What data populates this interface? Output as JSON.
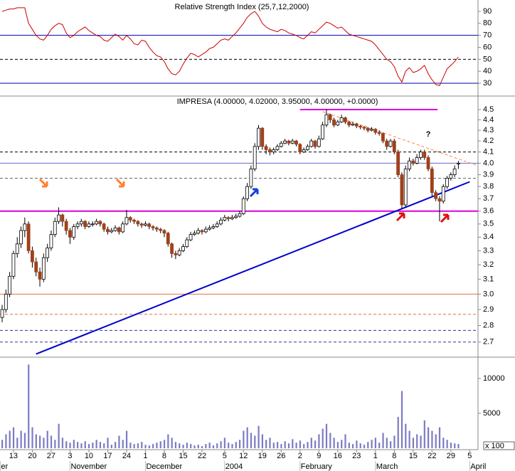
{
  "chart_data": [
    {
      "type": "line",
      "title": "Relative Strength Index (25,7,12,2000)",
      "color": "#cc0000",
      "xlim": [
        -0.57,
        126.2
      ],
      "ylim": [
        22.3,
        98.3
      ],
      "yticks": [
        30,
        40,
        50,
        60,
        70,
        80,
        90
      ],
      "reference_lines": [
        {
          "value": 70,
          "color": "#0000aa",
          "dashed": false
        },
        {
          "value": 50,
          "color": "#000000",
          "dashed": true
        },
        {
          "value": 30,
          "color": "#0000aa",
          "dashed": false
        }
      ],
      "values": [
        90,
        91,
        92,
        92,
        93,
        93,
        93,
        80,
        75,
        70,
        67,
        66,
        70,
        75,
        78,
        80,
        79,
        72,
        68,
        70,
        73,
        75,
        77,
        74,
        72,
        70,
        69,
        66,
        65,
        68,
        71,
        69,
        66,
        70,
        67,
        63,
        62,
        66,
        65,
        60,
        56,
        53,
        52,
        48,
        42,
        38,
        37,
        40,
        46,
        51,
        55,
        54,
        52,
        54,
        56,
        59,
        60,
        63,
        66,
        67,
        66,
        69,
        72,
        76,
        80,
        85,
        88,
        90,
        86,
        80,
        77,
        75,
        74,
        73,
        75,
        74,
        72,
        71,
        70,
        68,
        67,
        70,
        73,
        72,
        75,
        78,
        81,
        80,
        78,
        76,
        77,
        74,
        71,
        70,
        69,
        68,
        67,
        66,
        65,
        62,
        58,
        54,
        50,
        48,
        44,
        36,
        31,
        40,
        43,
        39,
        40,
        42,
        45,
        38,
        33,
        29,
        28,
        35,
        42,
        45,
        48,
        52
      ]
    },
    {
      "type": "candlestick",
      "title": "IMPRESA (4.00000, 4.02000, 3.95000, 4.00000, +0.0000)",
      "up_color": "#ffffff",
      "down_color": "#a0401a",
      "log_scale": true,
      "xlim": [
        -0.57,
        126.2
      ],
      "ylim": [
        2.62,
        4.6
      ],
      "yticks": [
        {
          "value": 4.5,
          "label": "4.5"
        },
        {
          "value": 4.4,
          "label": "4.4"
        },
        {
          "value": 4.3,
          "label": "4.3"
        },
        {
          "value": 4.2,
          "label": "4.2"
        },
        {
          "value": 4.1,
          "label": "4.1"
        },
        {
          "value": 4,
          "label": "4.0"
        },
        {
          "value": 3.9,
          "label": "3.9"
        },
        {
          "value": 3.8,
          "label": "3.8"
        },
        {
          "value": 3.7,
          "label": "3.7"
        },
        {
          "value": 3.6,
          "label": "3.6"
        },
        {
          "value": 3.5,
          "label": "3.5"
        },
        {
          "value": 3.4,
          "label": "3.4"
        },
        {
          "value": 3.3,
          "label": "3.3"
        },
        {
          "value": 3.2,
          "label": "3.2"
        },
        {
          "value": 3.1,
          "label": "3.1"
        },
        {
          "value": 3,
          "label": "3.0"
        },
        {
          "value": 2.9,
          "label": "2.9"
        },
        {
          "value": 2.8,
          "label": "2.8"
        },
        {
          "value": 2.7,
          "label": "2.7"
        }
      ],
      "reference_lines": [
        {
          "value": 4.1,
          "color": "#000000",
          "dashed": true
        },
        {
          "value": 4.0,
          "color": "#6666cc",
          "dashed": false
        },
        {
          "value": 3.87,
          "color": "#666666",
          "dashed": true
        },
        {
          "value": 3.6,
          "color": "#dd00dd",
          "dashed": false,
          "width": 2
        },
        {
          "value": 3.0,
          "color": "#e07040",
          "dashed": false
        },
        {
          "value": 2.87,
          "color": "#e07040",
          "dashed": true
        },
        {
          "value": 2.77,
          "color": "#333399",
          "dashed": true
        },
        {
          "value": 2.7,
          "color": "#333399",
          "dashed": true
        }
      ],
      "segments": [
        {
          "x": [
            79,
            115.5
          ],
          "y": [
            4.5,
            4.5
          ],
          "color": "#dd00dd",
          "dashed": false
        },
        {
          "x": [
            9,
            124
          ],
          "y": [
            2.63,
            3.84
          ],
          "color": "#0000cc",
          "dashed": false
        },
        {
          "x": [
            85,
            126
          ],
          "y": [
            4.48,
            3.98
          ],
          "color": "#ff8040",
          "dashed": true
        }
      ],
      "annotations": [
        {
          "text": "?",
          "x": 113,
          "y": 4.26,
          "color": "#ff8040"
        }
      ],
      "candles": [
        [
          2.85,
          2.93,
          2.82,
          2.9
        ],
        [
          2.9,
          3.03,
          2.88,
          3.0
        ],
        [
          3.0,
          3.15,
          2.98,
          3.12
        ],
        [
          3.12,
          3.3,
          3.1,
          3.28
        ],
        [
          3.28,
          3.4,
          3.25,
          3.35
        ],
        [
          3.35,
          3.48,
          3.32,
          3.45
        ],
        [
          3.45,
          3.55,
          3.4,
          3.5
        ],
        [
          3.5,
          3.52,
          3.28,
          3.3
        ],
        [
          3.3,
          3.33,
          3.18,
          3.22
        ],
        [
          3.22,
          3.25,
          3.12,
          3.15
        ],
        [
          3.15,
          3.18,
          3.05,
          3.1
        ],
        [
          3.1,
          3.28,
          3.08,
          3.25
        ],
        [
          3.25,
          3.35,
          3.22,
          3.32
        ],
        [
          3.32,
          3.45,
          3.3,
          3.42
        ],
        [
          3.42,
          3.55,
          3.4,
          3.52
        ],
        [
          3.52,
          3.63,
          3.5,
          3.57
        ],
        [
          3.57,
          3.58,
          3.48,
          3.52
        ],
        [
          3.52,
          3.54,
          3.42,
          3.45
        ],
        [
          3.45,
          3.47,
          3.35,
          3.4
        ],
        [
          3.4,
          3.5,
          3.38,
          3.48
        ],
        [
          3.48,
          3.52,
          3.46,
          3.5
        ],
        [
          3.5,
          3.54,
          3.48,
          3.52
        ],
        [
          3.52,
          3.53,
          3.46,
          3.48
        ],
        [
          3.48,
          3.52,
          3.47,
          3.5
        ],
        [
          3.5,
          3.52,
          3.48,
          3.5
        ],
        [
          3.5,
          3.54,
          3.49,
          3.52
        ],
        [
          3.52,
          3.53,
          3.48,
          3.5
        ],
        [
          3.5,
          3.51,
          3.44,
          3.46
        ],
        [
          3.46,
          3.48,
          3.42,
          3.44
        ],
        [
          3.44,
          3.47,
          3.43,
          3.45
        ],
        [
          3.45,
          3.49,
          3.44,
          3.47
        ],
        [
          3.47,
          3.48,
          3.42,
          3.44
        ],
        [
          3.44,
          3.52,
          3.43,
          3.5
        ],
        [
          3.5,
          3.61,
          3.49,
          3.55
        ],
        [
          3.55,
          3.56,
          3.51,
          3.53
        ],
        [
          3.53,
          3.54,
          3.5,
          3.52
        ],
        [
          3.52,
          3.53,
          3.48,
          3.5
        ],
        [
          3.5,
          3.51,
          3.47,
          3.49
        ],
        [
          3.49,
          3.52,
          3.48,
          3.5
        ],
        [
          3.5,
          3.51,
          3.46,
          3.48
        ],
        [
          3.48,
          3.49,
          3.45,
          3.47
        ],
        [
          3.47,
          3.48,
          3.44,
          3.46
        ],
        [
          3.46,
          3.47,
          3.43,
          3.45
        ],
        [
          3.45,
          3.46,
          3.4,
          3.43
        ],
        [
          3.43,
          3.44,
          3.33,
          3.35
        ],
        [
          3.35,
          3.36,
          3.25,
          3.28
        ],
        [
          3.28,
          3.3,
          3.24,
          3.27
        ],
        [
          3.27,
          3.32,
          3.26,
          3.3
        ],
        [
          3.3,
          3.35,
          3.29,
          3.33
        ],
        [
          3.33,
          3.4,
          3.32,
          3.38
        ],
        [
          3.38,
          3.44,
          3.37,
          3.42
        ],
        [
          3.42,
          3.45,
          3.41,
          3.43
        ],
        [
          3.43,
          3.47,
          3.42,
          3.45
        ],
        [
          3.45,
          3.46,
          3.42,
          3.44
        ],
        [
          3.44,
          3.48,
          3.43,
          3.46
        ],
        [
          3.46,
          3.49,
          3.45,
          3.47
        ],
        [
          3.47,
          3.5,
          3.46,
          3.48
        ],
        [
          3.48,
          3.52,
          3.47,
          3.5
        ],
        [
          3.5,
          3.55,
          3.49,
          3.53
        ],
        [
          3.53,
          3.57,
          3.52,
          3.55
        ],
        [
          3.55,
          3.56,
          3.52,
          3.54
        ],
        [
          3.54,
          3.57,
          3.53,
          3.55
        ],
        [
          3.55,
          3.58,
          3.54,
          3.56
        ],
        [
          3.56,
          3.6,
          3.55,
          3.58
        ],
        [
          3.58,
          3.72,
          3.57,
          3.7
        ],
        [
          3.7,
          3.83,
          3.68,
          3.8
        ],
        [
          3.8,
          3.98,
          3.78,
          3.95
        ],
        [
          3.95,
          4.18,
          3.93,
          4.15
        ],
        [
          4.15,
          4.35,
          4.12,
          4.32
        ],
        [
          4.32,
          4.33,
          4.12,
          4.15
        ],
        [
          4.15,
          4.17,
          4.08,
          4.12
        ],
        [
          4.12,
          4.14,
          4.07,
          4.1
        ],
        [
          4.1,
          4.14,
          4.08,
          4.12
        ],
        [
          4.12,
          4.17,
          4.11,
          4.15
        ],
        [
          4.15,
          4.2,
          4.14,
          4.18
        ],
        [
          4.18,
          4.22,
          4.17,
          4.2
        ],
        [
          4.2,
          4.21,
          4.16,
          4.18
        ],
        [
          4.18,
          4.22,
          4.17,
          4.2
        ],
        [
          4.2,
          4.21,
          4.15,
          4.17
        ],
        [
          4.17,
          4.18,
          4.08,
          4.1
        ],
        [
          4.1,
          4.14,
          4.09,
          4.12
        ],
        [
          4.12,
          4.17,
          4.11,
          4.15
        ],
        [
          4.15,
          4.22,
          4.14,
          4.2
        ],
        [
          4.2,
          4.21,
          4.13,
          4.15
        ],
        [
          4.15,
          4.25,
          4.14,
          4.22
        ],
        [
          4.22,
          4.38,
          4.21,
          4.35
        ],
        [
          4.35,
          4.5,
          4.33,
          4.45
        ],
        [
          4.45,
          4.46,
          4.37,
          4.4
        ],
        [
          4.4,
          4.42,
          4.33,
          4.35
        ],
        [
          4.35,
          4.4,
          4.34,
          4.38
        ],
        [
          4.38,
          4.45,
          4.37,
          4.42
        ],
        [
          4.42,
          4.43,
          4.36,
          4.38
        ],
        [
          4.38,
          4.39,
          4.33,
          4.35
        ],
        [
          4.35,
          4.38,
          4.34,
          4.36
        ],
        [
          4.36,
          4.37,
          4.32,
          4.34
        ],
        [
          4.34,
          4.35,
          4.31,
          4.33
        ],
        [
          4.33,
          4.34,
          4.3,
          4.32
        ],
        [
          4.32,
          4.33,
          4.28,
          4.3
        ],
        [
          4.3,
          4.33,
          4.29,
          4.31
        ],
        [
          4.31,
          4.32,
          4.26,
          4.28
        ],
        [
          4.28,
          4.3,
          4.25,
          4.27
        ],
        [
          4.27,
          4.28,
          4.18,
          4.2
        ],
        [
          4.2,
          4.22,
          4.12,
          4.15
        ],
        [
          4.15,
          4.22,
          4.14,
          4.2
        ],
        [
          4.2,
          4.22,
          4.08,
          4.1
        ],
        [
          4.1,
          4.12,
          3.88,
          3.9
        ],
        [
          3.9,
          3.92,
          3.62,
          3.65
        ],
        [
          3.65,
          3.98,
          3.63,
          3.95
        ],
        [
          3.95,
          4.05,
          3.93,
          4.02
        ],
        [
          4.02,
          4.04,
          3.98,
          4.0
        ],
        [
          4.0,
          4.08,
          3.99,
          4.05
        ],
        [
          4.05,
          4.12,
          4.03,
          4.1
        ],
        [
          4.1,
          4.12,
          4.03,
          4.05
        ],
        [
          4.05,
          4.07,
          3.93,
          3.95
        ],
        [
          3.95,
          3.97,
          3.72,
          3.75
        ],
        [
          3.75,
          3.77,
          3.68,
          3.7
        ],
        [
          3.7,
          3.72,
          3.52,
          3.68
        ],
        [
          3.68,
          3.82,
          3.66,
          3.8
        ],
        [
          3.8,
          3.89,
          3.78,
          3.87
        ],
        [
          3.87,
          3.92,
          3.85,
          3.9
        ],
        [
          3.9,
          3.98,
          3.88,
          3.95
        ],
        [
          4.0,
          4.02,
          3.95,
          4.0
        ]
      ]
    },
    {
      "type": "bar",
      "color": "#7b7bc4",
      "unit_label": "x 100",
      "xlim": [
        -0.57,
        126.2
      ],
      "ylim": [
        0,
        12750
      ],
      "yticks": [
        5000,
        10000
      ],
      "xticks": [
        {
          "value": 3,
          "label": "13"
        },
        {
          "value": 8,
          "label": "20"
        },
        {
          "value": 13,
          "label": "27"
        },
        {
          "value": 18,
          "label": "3"
        },
        {
          "value": 23,
          "label": "10"
        },
        {
          "value": 28,
          "label": "17"
        },
        {
          "value": 33,
          "label": "24"
        },
        {
          "value": 38,
          "label": "1"
        },
        {
          "value": 43,
          "label": "8"
        },
        {
          "value": 48,
          "label": "15"
        },
        {
          "value": 53,
          "label": "22"
        },
        {
          "value": 59,
          "label": "5"
        },
        {
          "value": 64,
          "label": "12"
        },
        {
          "value": 69,
          "label": "19"
        },
        {
          "value": 74,
          "label": "26"
        },
        {
          "value": 79,
          "label": "2"
        },
        {
          "value": 84,
          "label": "9"
        },
        {
          "value": 89,
          "label": "16"
        },
        {
          "value": 94,
          "label": "23"
        },
        {
          "value": 99,
          "label": "1"
        },
        {
          "value": 104,
          "label": "8"
        },
        {
          "value": 109,
          "label": "15"
        },
        {
          "value": 114,
          "label": "22"
        },
        {
          "value": 119,
          "label": "29"
        },
        {
          "value": 124,
          "label": "5"
        }
      ],
      "xticks_months": [
        {
          "value": -0.5,
          "label": "er"
        },
        {
          "value": 18,
          "label": "November"
        },
        {
          "value": 38,
          "label": "December"
        },
        {
          "value": 59,
          "label": "2004"
        },
        {
          "value": 79,
          "label": "February"
        },
        {
          "value": 99,
          "label": "March"
        },
        {
          "value": 124,
          "label": "April"
        }
      ],
      "values": [
        1200,
        2000,
        2500,
        3000,
        1500,
        2500,
        2200,
        12000,
        3000,
        2000,
        1800,
        1500,
        2500,
        1800,
        1200,
        3500,
        1500,
        1000,
        800,
        1200,
        900,
        700,
        1000,
        600,
        800,
        1200,
        900,
        700,
        1500,
        500,
        900,
        1800,
        1200,
        2500,
        800,
        600,
        700,
        900,
        500,
        400,
        600,
        800,
        1000,
        1200,
        2000,
        1500,
        900,
        700,
        500,
        800,
        600,
        400,
        500,
        300,
        600,
        800,
        400,
        700,
        1000,
        1500,
        800,
        600,
        900,
        1200,
        2500,
        3000,
        2200,
        1800,
        3200,
        2000,
        1200,
        1500,
        800,
        900,
        600,
        1000,
        700,
        1300,
        800,
        1100,
        600,
        900,
        1500,
        1100,
        2000,
        2800,
        3500,
        2200,
        1500,
        900,
        1200,
        2000,
        800,
        600,
        1100,
        700,
        500,
        900,
        1200,
        1500,
        800,
        2200,
        1500,
        1000,
        1800,
        4500,
        8200,
        3500,
        2500,
        1500,
        2000,
        1800,
        4000,
        3000,
        2500,
        2000,
        3000,
        1500,
        1200,
        800,
        700,
        600
      ]
    }
  ]
}
